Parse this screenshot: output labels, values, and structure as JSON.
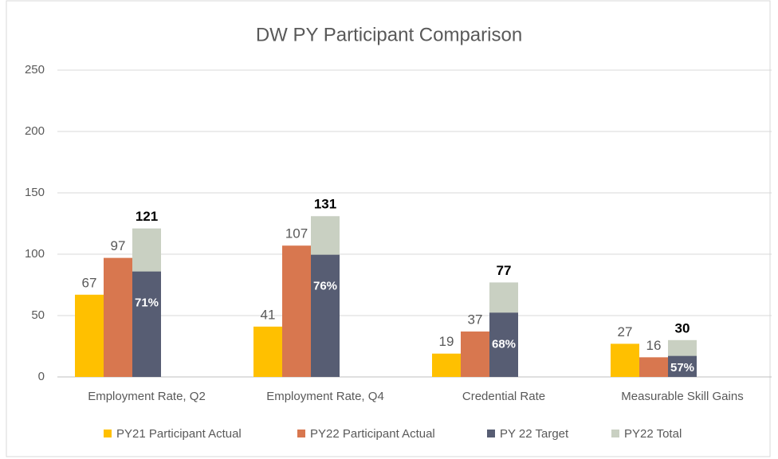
{
  "chart_data": {
    "type": "bar",
    "title": "DW PY Participant Comparison",
    "categories": [
      "Employment Rate, Q2",
      "Employment Rate, Q4",
      "Credential Rate",
      "Measurable Skill Gains"
    ],
    "series": [
      {
        "name": "PY21 Participant Actual",
        "color": "#ffc000",
        "values": [
          67,
          41,
          19,
          27
        ]
      },
      {
        "name": "PY22 Participant Actual",
        "color": "#d8774f",
        "values": [
          97,
          107,
          37,
          16
        ]
      },
      {
        "name": "PY 22 Target",
        "color": "#575d73",
        "values": [
          71,
          76,
          68,
          57
        ],
        "value_labels": [
          "71%",
          "76%",
          "68%",
          "57%"
        ]
      },
      {
        "name": "PY22 Total",
        "color": "#c9d0c2",
        "values": [
          121,
          131,
          77,
          30
        ]
      }
    ],
    "ylim": [
      0,
      250
    ],
    "yticks": [
      0,
      50,
      100,
      150,
      200,
      250
    ],
    "grid": true,
    "legend": "bottom"
  }
}
